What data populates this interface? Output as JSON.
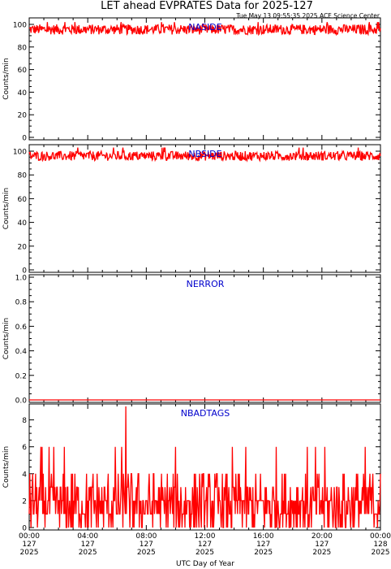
{
  "title": "LET ahead EVPRATES Data for 2025-127",
  "timestamp": "Tue May 13 09:55:35 2025 ACE Science Center",
  "xlabel": "UTC Day of Year",
  "x_ticks": [
    {
      "line1": "00:00",
      "line2": "127",
      "line3": "2025",
      "hour": 0
    },
    {
      "line1": "04:00",
      "line2": "127",
      "line3": "2025",
      "hour": 4
    },
    {
      "line1": "08:00",
      "line2": "127",
      "line3": "2025",
      "hour": 8
    },
    {
      "line1": "12:00",
      "line2": "127",
      "line3": "2025",
      "hour": 12
    },
    {
      "line1": "16:00",
      "line2": "127",
      "line3": "2025",
      "hour": 16
    },
    {
      "line1": "20:00",
      "line2": "127",
      "line3": "2025",
      "hour": 20
    },
    {
      "line1": "00:00",
      "line2": "128",
      "line3": "2025",
      "hour": 24
    }
  ],
  "colors": {
    "series": "#ff0000",
    "panel_label": "#0000cc",
    "axis": "#000000"
  },
  "chart_data": [
    {
      "type": "line",
      "name": "NASIDE",
      "ylabel": "Counts/min",
      "ylim": [
        0,
        100
      ],
      "y_ticks": [
        "0",
        "20",
        "40",
        "60",
        "80",
        "100"
      ],
      "y_tick_values": [
        0,
        20,
        40,
        60,
        80,
        100
      ],
      "xlim_hours": [
        0,
        24
      ],
      "series_summary": {
        "typical_min": 91,
        "typical_max": 100,
        "mean": 96,
        "peak": 102
      }
    },
    {
      "type": "line",
      "name": "NBSIDE",
      "ylabel": "Counts/min",
      "ylim": [
        0,
        100
      ],
      "y_ticks": [
        "0",
        "20",
        "40",
        "60",
        "80",
        "100"
      ],
      "y_tick_values": [
        0,
        20,
        40,
        60,
        80,
        100
      ],
      "xlim_hours": [
        0,
        24
      ],
      "series_summary": {
        "typical_min": 92,
        "typical_max": 100,
        "mean": 96,
        "peak": 103
      }
    },
    {
      "type": "line",
      "name": "NERROR",
      "ylabel": "Counts/min",
      "ylim": [
        0,
        1
      ],
      "y_ticks": [
        "0.0",
        "0.2",
        "0.4",
        "0.6",
        "0.8",
        "1.0"
      ],
      "y_tick_values": [
        0,
        0.2,
        0.4,
        0.6,
        0.8,
        1.0
      ],
      "xlim_hours": [
        0,
        24
      ],
      "series_summary": {
        "value": 0
      }
    },
    {
      "type": "line",
      "name": "NBADTAGS",
      "ylabel": "Counts/min",
      "ylim": [
        0,
        9
      ],
      "y_ticks": [
        "0",
        "2",
        "4",
        "6",
        "8"
      ],
      "y_tick_values": [
        0,
        2,
        4,
        6,
        8
      ],
      "xlim_hours": [
        0,
        24
      ],
      "series_summary": {
        "typical_min": 0,
        "typical_max": 3,
        "mean": 2,
        "frequent_spike": 4,
        "occasional_spike": 6,
        "peak": 9,
        "peak_hour": 6.6
      }
    }
  ]
}
